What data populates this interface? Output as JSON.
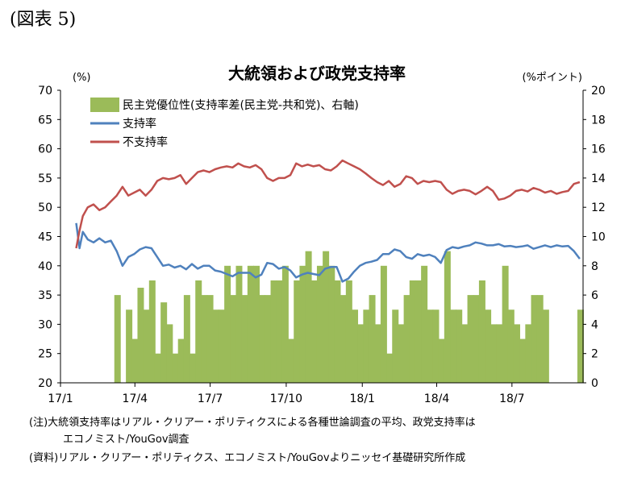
{
  "figure_label": "(図表 5)",
  "notes": {
    "line1": "(注)大統領支持率はリアル・クリアー・ポリティクスによる各種世論調査の平均、政党支持率は",
    "line2": "エコノミスト/YouGov調査",
    "line3": "(資料)リアル・クリアー・ポリティクス、エコノミスト/YouGovよりニッセイ基礎研究所作成"
  },
  "chart_data": {
    "type": "line",
    "title": "大統領および政党支持率",
    "ylabel_left": "(%)",
    "ylabel_right": "(%ポイント)",
    "xlim": [
      "2017-01-01",
      "2018-09-25"
    ],
    "ylim_left": [
      20,
      70
    ],
    "ylim_right": [
      0,
      20
    ],
    "yticks_left": [
      20,
      25,
      30,
      35,
      40,
      45,
      50,
      55,
      60,
      65,
      70
    ],
    "yticks_right": [
      0,
      2,
      4,
      6,
      8,
      10,
      12,
      14,
      16,
      18,
      20
    ],
    "xticks": [
      {
        "date": "2017-01-01",
        "label": "17/1"
      },
      {
        "date": "2017-04-01",
        "label": "17/4"
      },
      {
        "date": "2017-07-01",
        "label": "17/7"
      },
      {
        "date": "2017-10-01",
        "label": "17/10"
      },
      {
        "date": "2018-01-01",
        "label": "18/1"
      },
      {
        "date": "2018-04-01",
        "label": "18/4"
      },
      {
        "date": "2018-07-01",
        "label": "18/7"
      }
    ],
    "grid": false,
    "legend_position": "top-left",
    "series": [
      {
        "name": "民主党優位性(支持率差(民主党-共和党)、右軸)",
        "kind": "bar",
        "axis": "right",
        "color": "#9bbb59",
        "x": [
          "2017-03-11",
          "2017-03-18",
          "2017-03-25",
          "2017-04-01",
          "2017-04-08",
          "2017-04-15",
          "2017-04-22",
          "2017-04-29",
          "2017-05-06",
          "2017-05-13",
          "2017-05-20",
          "2017-05-27",
          "2017-06-03",
          "2017-06-10",
          "2017-06-17",
          "2017-06-24",
          "2017-07-01",
          "2017-07-08",
          "2017-07-15",
          "2017-07-22",
          "2017-07-29",
          "2017-08-05",
          "2017-08-12",
          "2017-08-19",
          "2017-08-26",
          "2017-09-02",
          "2017-09-09",
          "2017-09-16",
          "2017-09-23",
          "2017-09-30",
          "2017-10-07",
          "2017-10-14",
          "2017-10-21",
          "2017-10-28",
          "2017-11-04",
          "2017-11-11",
          "2017-11-18",
          "2017-11-25",
          "2017-12-02",
          "2017-12-09",
          "2017-12-16",
          "2017-12-23",
          "2017-12-30",
          "2018-01-06",
          "2018-01-13",
          "2018-01-20",
          "2018-01-27",
          "2018-02-03",
          "2018-02-10",
          "2018-02-17",
          "2018-02-24",
          "2018-03-03",
          "2018-03-10",
          "2018-03-17",
          "2018-03-24",
          "2018-03-31",
          "2018-04-07",
          "2018-04-14",
          "2018-04-21",
          "2018-04-28",
          "2018-05-05",
          "2018-05-12",
          "2018-05-19",
          "2018-05-26",
          "2018-06-02",
          "2018-06-09",
          "2018-06-16",
          "2018-06-23",
          "2018-06-30",
          "2018-07-07",
          "2018-07-14",
          "2018-07-21",
          "2018-07-28",
          "2018-08-04",
          "2018-08-11",
          "2018-08-18",
          "2018-08-25",
          "2018-09-01",
          "2018-09-08",
          "2018-09-15",
          "2018-09-22"
        ],
        "values": [
          6.0,
          0.0,
          5.0,
          3.0,
          6.5,
          5.0,
          7.0,
          2.0,
          5.5,
          4.0,
          2.0,
          3.0,
          6.0,
          2.0,
          7.0,
          6.0,
          6.0,
          5.0,
          5.0,
          8.0,
          6.0,
          8.0,
          6.0,
          8.0,
          8.0,
          6.0,
          6.0,
          7.0,
          7.0,
          8.0,
          3.0,
          7.0,
          8.0,
          9.0,
          7.0,
          8.0,
          9.0,
          8.0,
          7.0,
          6.0,
          7.0,
          5.0,
          4.0,
          5.0,
          6.0,
          4.0,
          8.0,
          2.0,
          5.0,
          4.0,
          6.0,
          7.0,
          7.0,
          8.0,
          5.0,
          5.0,
          3.0,
          9.0,
          5.0,
          5.0,
          4.0,
          6.0,
          6.0,
          7.0,
          5.0,
          4.0,
          4.0,
          8.0,
          5.0,
          4.0,
          3.0,
          4.0,
          6.0,
          6.0,
          5.0,
          0.0,
          0.0,
          0.0,
          0.0,
          0.0,
          5.0
        ]
      },
      {
        "name": "支持率",
        "kind": "line",
        "axis": "left",
        "color": "#4f81bd",
        "x": [
          "2017-01-20",
          "2017-01-24",
          "2017-01-28",
          "2017-02-03",
          "2017-02-10",
          "2017-02-17",
          "2017-02-24",
          "2017-03-03",
          "2017-03-10",
          "2017-03-17",
          "2017-03-24",
          "2017-03-31",
          "2017-04-07",
          "2017-04-14",
          "2017-04-21",
          "2017-04-28",
          "2017-05-05",
          "2017-05-12",
          "2017-05-19",
          "2017-05-26",
          "2017-06-02",
          "2017-06-09",
          "2017-06-16",
          "2017-06-23",
          "2017-06-30",
          "2017-07-07",
          "2017-07-14",
          "2017-07-21",
          "2017-07-28",
          "2017-08-04",
          "2017-08-11",
          "2017-08-18",
          "2017-08-25",
          "2017-09-01",
          "2017-09-08",
          "2017-09-15",
          "2017-09-22",
          "2017-09-29",
          "2017-10-06",
          "2017-10-13",
          "2017-10-20",
          "2017-10-27",
          "2017-11-03",
          "2017-11-10",
          "2017-11-17",
          "2017-11-24",
          "2017-12-01",
          "2017-12-08",
          "2017-12-15",
          "2017-12-22",
          "2017-12-29",
          "2018-01-05",
          "2018-01-12",
          "2018-01-19",
          "2018-01-26",
          "2018-02-02",
          "2018-02-09",
          "2018-02-16",
          "2018-02-23",
          "2018-03-02",
          "2018-03-09",
          "2018-03-16",
          "2018-03-23",
          "2018-03-30",
          "2018-04-06",
          "2018-04-13",
          "2018-04-20",
          "2018-04-27",
          "2018-05-04",
          "2018-05-11",
          "2018-05-18",
          "2018-05-25",
          "2018-06-01",
          "2018-06-08",
          "2018-06-15",
          "2018-06-22",
          "2018-06-29",
          "2018-07-06",
          "2018-07-13",
          "2018-07-20",
          "2018-07-27",
          "2018-08-03",
          "2018-08-10",
          "2018-08-17",
          "2018-08-24",
          "2018-08-31",
          "2018-09-07",
          "2018-09-14",
          "2018-09-21"
        ],
        "values": [
          47.3,
          43.0,
          45.8,
          44.5,
          44.0,
          44.7,
          44.0,
          44.3,
          42.5,
          40.0,
          41.5,
          42.0,
          42.8,
          43.2,
          43.0,
          41.5,
          40.0,
          40.2,
          39.7,
          40.0,
          39.4,
          40.3,
          39.5,
          40.0,
          40.0,
          39.2,
          39.0,
          38.6,
          38.2,
          38.8,
          38.8,
          38.8,
          38.0,
          38.5,
          40.5,
          40.3,
          39.5,
          39.8,
          39.2,
          38.0,
          38.5,
          38.8,
          38.6,
          38.4,
          39.5,
          39.8,
          39.8,
          37.3,
          37.8,
          39.0,
          40.0,
          40.5,
          40.7,
          41.0,
          42.0,
          42.0,
          42.8,
          42.5,
          41.5,
          41.2,
          42.0,
          41.7,
          41.9,
          41.5,
          40.5,
          42.7,
          43.2,
          43.0,
          43.3,
          43.5,
          44.0,
          43.8,
          43.5,
          43.5,
          43.7,
          43.3,
          43.4,
          43.2,
          43.3,
          43.5,
          42.9,
          43.2,
          43.5,
          43.2,
          43.5,
          43.3,
          43.4,
          42.5,
          41.2
        ]
      },
      {
        "name": "不支持率",
        "kind": "line",
        "axis": "left",
        "color": "#c0504d",
        "x": [
          "2017-01-20",
          "2017-01-24",
          "2017-01-28",
          "2017-02-03",
          "2017-02-10",
          "2017-02-17",
          "2017-02-24",
          "2017-03-03",
          "2017-03-10",
          "2017-03-17",
          "2017-03-24",
          "2017-03-31",
          "2017-04-07",
          "2017-04-14",
          "2017-04-21",
          "2017-04-28",
          "2017-05-05",
          "2017-05-12",
          "2017-05-19",
          "2017-05-26",
          "2017-06-02",
          "2017-06-09",
          "2017-06-16",
          "2017-06-23",
          "2017-06-30",
          "2017-07-07",
          "2017-07-14",
          "2017-07-21",
          "2017-07-28",
          "2017-08-04",
          "2017-08-11",
          "2017-08-18",
          "2017-08-25",
          "2017-09-01",
          "2017-09-08",
          "2017-09-15",
          "2017-09-22",
          "2017-09-29",
          "2017-10-06",
          "2017-10-13",
          "2017-10-20",
          "2017-10-27",
          "2017-11-03",
          "2017-11-10",
          "2017-11-17",
          "2017-11-24",
          "2017-12-01",
          "2017-12-08",
          "2017-12-15",
          "2017-12-22",
          "2017-12-29",
          "2018-01-05",
          "2018-01-12",
          "2018-01-19",
          "2018-01-26",
          "2018-02-02",
          "2018-02-09",
          "2018-02-16",
          "2018-02-23",
          "2018-03-02",
          "2018-03-09",
          "2018-03-16",
          "2018-03-23",
          "2018-03-30",
          "2018-04-06",
          "2018-04-13",
          "2018-04-20",
          "2018-04-27",
          "2018-05-04",
          "2018-05-11",
          "2018-05-18",
          "2018-05-25",
          "2018-06-01",
          "2018-06-08",
          "2018-06-15",
          "2018-06-22",
          "2018-06-29",
          "2018-07-06",
          "2018-07-13",
          "2018-07-20",
          "2018-07-27",
          "2018-08-03",
          "2018-08-10",
          "2018-08-17",
          "2018-08-24",
          "2018-08-31",
          "2018-09-07",
          "2018-09-14",
          "2018-09-21"
        ],
        "values": [
          43.0,
          46.0,
          48.5,
          50.0,
          50.5,
          49.5,
          50.0,
          51.0,
          52.0,
          53.5,
          52.0,
          52.5,
          53.0,
          52.0,
          53.0,
          54.5,
          55.0,
          54.8,
          55.0,
          55.5,
          54.0,
          55.0,
          56.0,
          56.3,
          56.0,
          56.5,
          56.8,
          57.0,
          56.8,
          57.5,
          57.0,
          56.8,
          57.2,
          56.5,
          55.0,
          54.5,
          55.0,
          55.0,
          55.5,
          57.5,
          57.0,
          57.3,
          57.0,
          57.2,
          56.5,
          56.3,
          57.0,
          58.0,
          57.5,
          57.0,
          56.5,
          55.8,
          55.0,
          54.3,
          53.8,
          54.5,
          53.5,
          54.0,
          55.3,
          55.0,
          54.0,
          54.5,
          54.3,
          54.5,
          54.3,
          53.0,
          52.3,
          52.8,
          53.0,
          52.8,
          52.2,
          52.8,
          53.5,
          52.8,
          51.3,
          51.5,
          52.0,
          52.8,
          53.0,
          52.7,
          53.3,
          53.0,
          52.5,
          52.8,
          52.3,
          52.6,
          52.8,
          54.0,
          54.3
        ]
      }
    ]
  }
}
